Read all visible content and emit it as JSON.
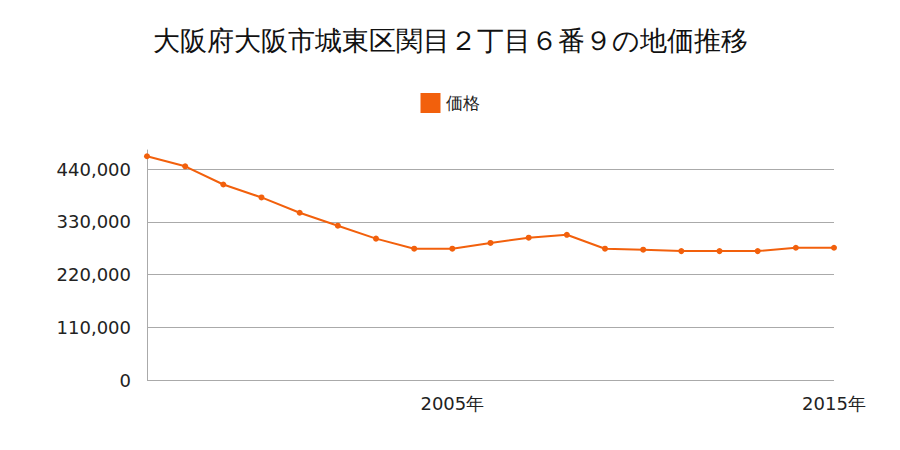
{
  "chart_data": {
    "type": "line",
    "title": "大阪府大阪市城東区関目２丁目６番９の地価推移",
    "categories": [
      null,
      null,
      null,
      null,
      null,
      null,
      null,
      null,
      "2005年",
      null,
      null,
      null,
      null,
      null,
      null,
      null,
      null,
      null,
      "2015年"
    ],
    "series": [
      {
        "name": "価格",
        "color": "#f2600c",
        "marker": "circle",
        "values": [
          467000,
          446000,
          408000,
          381000,
          349000,
          322000,
          295000,
          274000,
          274000,
          286000,
          297000,
          303000,
          274000,
          272000,
          269000,
          269000,
          269000,
          276000,
          276000
        ]
      }
    ],
    "ylim": [
      0,
      480000
    ],
    "yticks": [
      0,
      {
        "value": 110000,
        "label": "110,000"
      },
      {
        "value": 220000,
        "label": "220,000"
      },
      {
        "value": 330000,
        "label": "330,000"
      },
      {
        "value": 440000,
        "label": "440,000"
      }
    ],
    "grid": true,
    "legend": "top"
  }
}
